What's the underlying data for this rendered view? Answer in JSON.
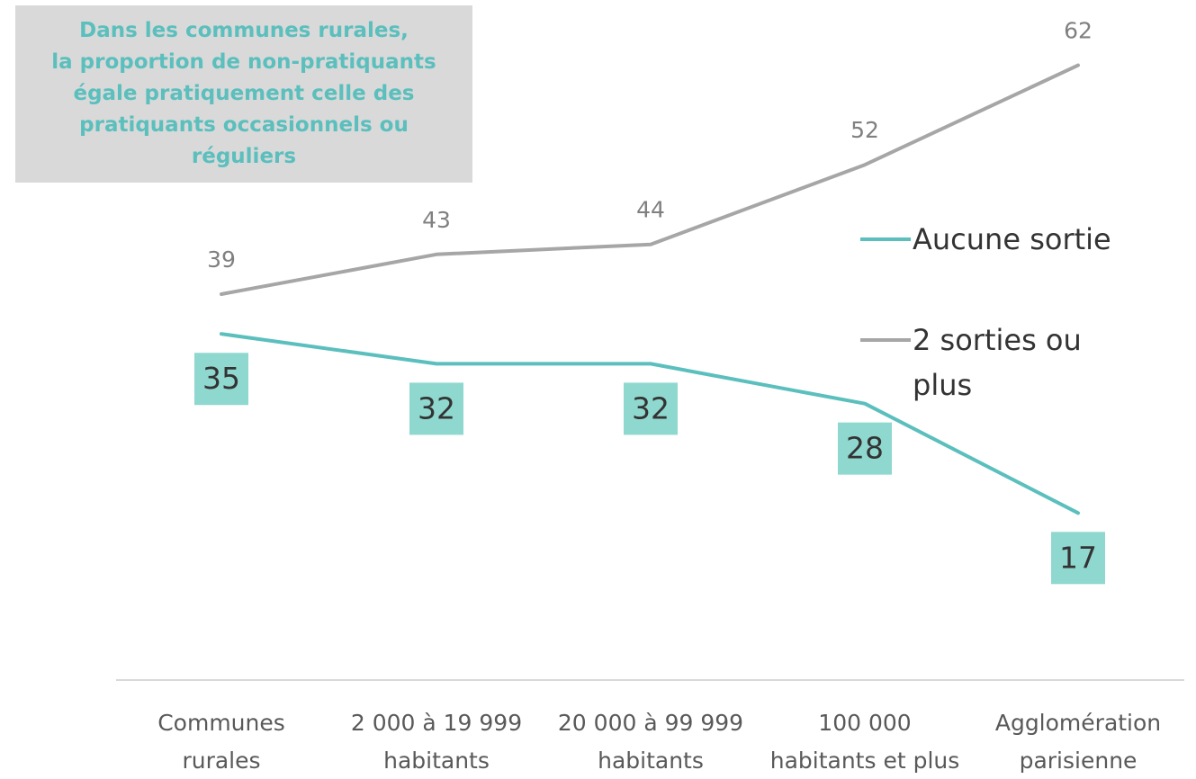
{
  "chart_data": {
    "type": "line",
    "title": "",
    "xlabel": "",
    "ylabel": "",
    "categories": [
      "Communes rurales",
      "2 000 à 19 999 habitants",
      "20 000 à 99 999 habitants",
      "100 000 habitants et plus",
      "Agglomération parisienne"
    ],
    "category_lines": [
      [
        "Communes",
        "rurales"
      ],
      [
        "2 000 à 19 999",
        "habitants"
      ],
      [
        "20 000 à 99 999",
        "habitants"
      ],
      [
        "100 000",
        "habitants et plus"
      ],
      [
        "Agglomération",
        "parisienne"
      ]
    ],
    "series": [
      {
        "name": "Aucune sortie",
        "legend_lines": [
          "Aucune sortie"
        ],
        "values": [
          35,
          32,
          32,
          28,
          17
        ],
        "color": "#5bbfbd",
        "label_bg": "#8fd8cf",
        "label_color": "#333333"
      },
      {
        "name": "2 sorties ou plus",
        "legend_lines": [
          "2 sorties ou",
          "plus"
        ],
        "values": [
          39,
          43,
          44,
          52,
          62
        ],
        "color": "#a6a6a6",
        "label_color": "#808080"
      }
    ],
    "ylim": [
      0,
      70
    ],
    "grid": false,
    "legend": "right",
    "annotation": {
      "text": "Dans les communes rurales,\nla proportion de non-pratiquants\négale pratiquement celle des\npratiquants occasionnels ou\nréguliers",
      "color": "#5bbfbd",
      "background": "#d9d9d9"
    },
    "axis_color": "#d9d9d9",
    "tick_label_color": "#595959"
  }
}
